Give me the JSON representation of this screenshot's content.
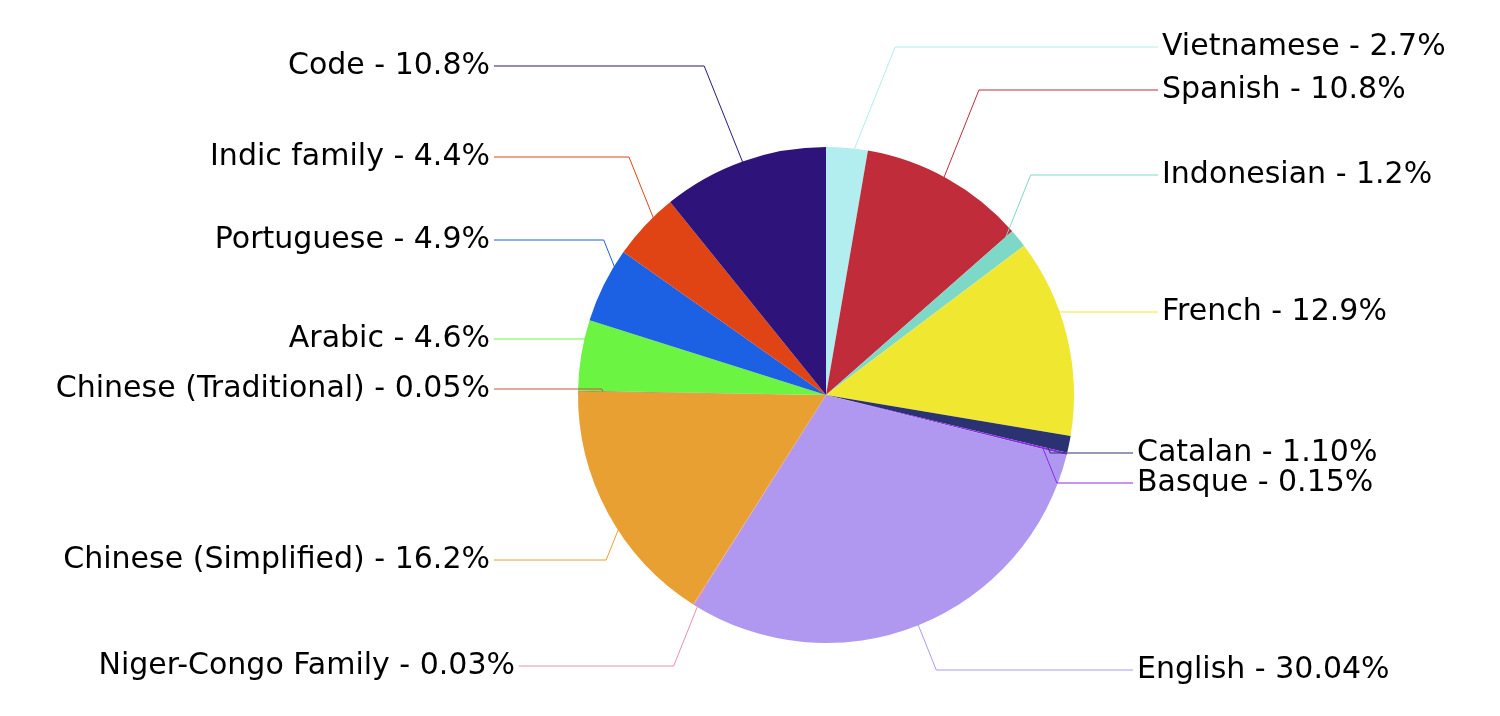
{
  "chart_data": {
    "type": "pie",
    "categories": [
      "Vietnamese",
      "Spanish",
      "Indonesian",
      "French",
      "Catalan",
      "Basque",
      "English",
      "Niger-Congo Family",
      "Chinese (Simplified)",
      "Chinese (Traditional)",
      "Arabic",
      "Portuguese",
      "Indic family",
      "Code"
    ],
    "values": [
      2.7,
      10.8,
      1.2,
      12.9,
      1.1,
      0.15,
      30.04,
      0.03,
      16.2,
      0.05,
      4.6,
      4.9,
      4.4,
      10.8
    ],
    "value_labels": [
      "Vietnamese - 2.7%",
      "Spanish - 10.8%",
      "Indonesian - 1.2%",
      "French - 12.9%",
      "Catalan - 1.10%",
      "Basque - 0.15%",
      "English - 30.04%",
      "Niger-Congo Family - 0.03%",
      "Chinese (Simplified) - 16.2%",
      "Chinese (Traditional) - 0.05%",
      "Arabic - 4.6%",
      "Portuguese - 4.9%",
      "Indic family - 4.4%",
      "Code - 10.8%"
    ],
    "colors": [
      "#b2edef",
      "#c02c3a",
      "#7ed8c8",
      "#f0e830",
      "#2b3272",
      "#8a2be2",
      "#b098f0",
      "#e890a8",
      "#e8a032",
      "#c05838",
      "#6cf442",
      "#1c60e4",
      "#e04414",
      "#2e147a"
    ],
    "data_labels": true
  }
}
